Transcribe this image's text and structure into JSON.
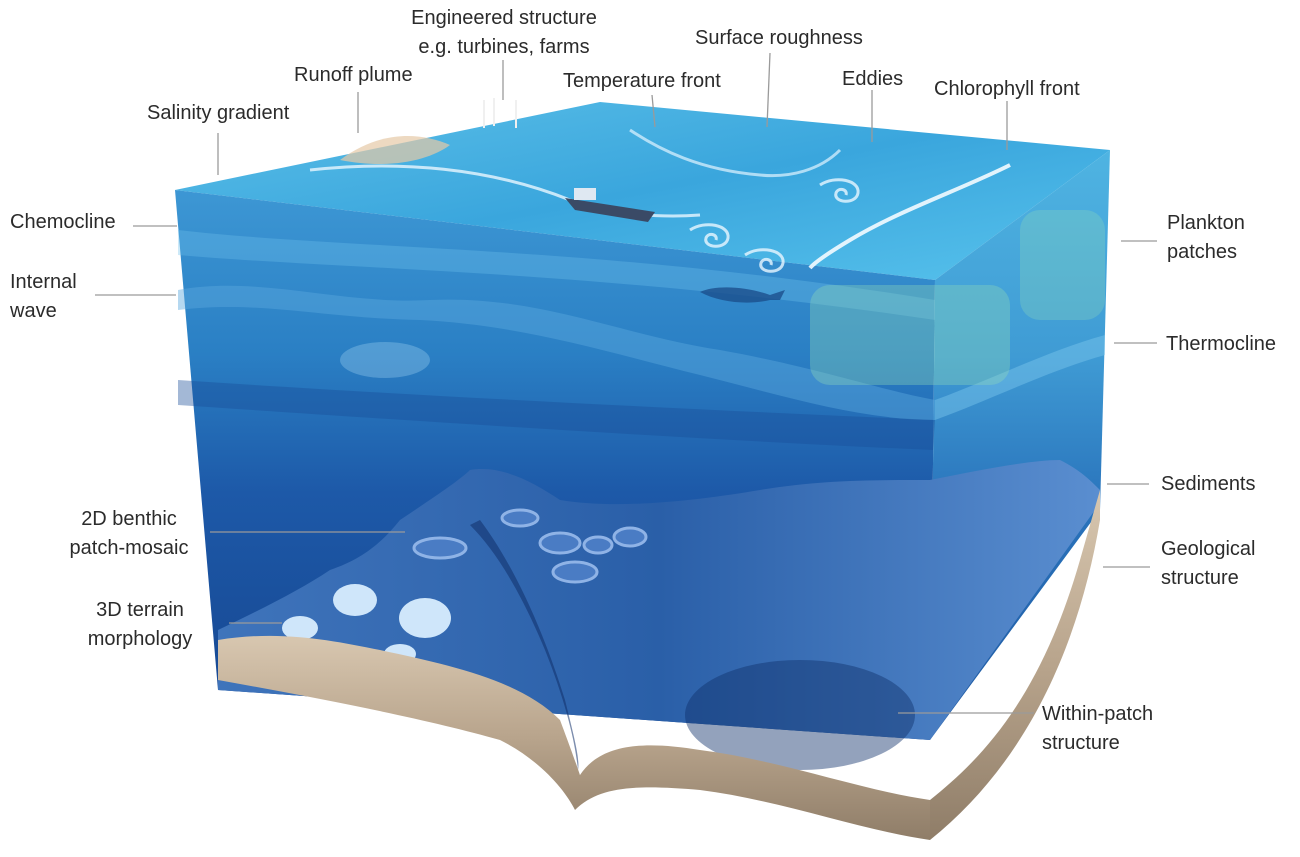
{
  "labels": {
    "engineered_structure": [
      "Engineered structure",
      "e.g. turbines, farms"
    ],
    "surface_roughness": "Surface roughness",
    "runoff_plume": "Runoff plume",
    "temperature_front": "Temperature front",
    "eddies": "Eddies",
    "chlorophyll_front": "Chlorophyll front",
    "salinity_gradient": "Salinity gradient",
    "chemocline": "Chemocline",
    "plankton_patches": [
      "Plankton",
      "patches"
    ],
    "internal_wave": [
      "Internal",
      "wave"
    ],
    "thermocline": "Thermocline",
    "sediments": "Sediments",
    "benthic_patch_mosaic": [
      "2D benthic",
      "patch-mosaic"
    ],
    "geological_structure": [
      "Geological",
      "structure"
    ],
    "terrain_morphology": [
      "3D terrain",
      "morphology"
    ],
    "within_patch_structure": [
      "Within-patch",
      "structure"
    ]
  },
  "colors": {
    "surface": "#3aa6dd",
    "water_upper": "#2a7fc4",
    "water_deep": "#16458f",
    "seabed": "#2a5fa8",
    "sediment": "#b8a48c",
    "leader_line": "#9a9a9a",
    "text": "#2b2b2b"
  }
}
